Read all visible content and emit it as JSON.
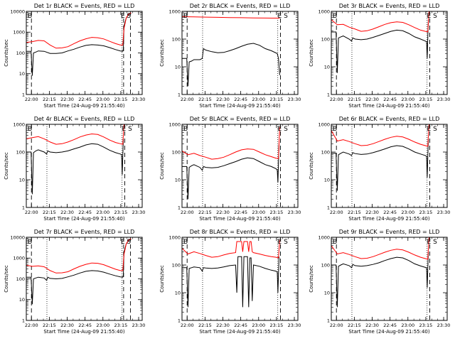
{
  "colors": {
    "events": "#000000",
    "lld": "#ff0000",
    "background": "#ffffff"
  },
  "xticks": [
    "22:00",
    "22:15",
    "22:30",
    "22:45",
    "23:00",
    "23:15",
    "23:30"
  ],
  "xlabel": "Start Time (24-Aug-09 21:55:40)",
  "ylabel": "Counts/sec",
  "marker_start": "B",
  "marker_end": "E S",
  "chart_data": [
    {
      "type": "line",
      "title": "Det 1r BLACK = Events, RED = LLD",
      "xlim_min": [
        0,
        97.3
      ],
      "ylim": [
        1,
        10000
      ],
      "yticks": [
        "1",
        "10",
        "100",
        "1000",
        "10000"
      ],
      "dashed_x": [
        4.3,
        81.7,
        87.5
      ],
      "dotted_x": [
        80.4
      ],
      "series": [
        {
          "name": "Events",
          "color": "#000000",
          "x": [
            0,
            4,
            5,
            6,
            8,
            10,
            15,
            20,
            25,
            30,
            35,
            40,
            45,
            50,
            55,
            60,
            65,
            70,
            75,
            79,
            81,
            81.5,
            82,
            84,
            86,
            88
          ],
          "y": [
            120,
            120,
            8,
            100,
            110,
            125,
            120,
            95,
            95,
            100,
            125,
            150,
            190,
            230,
            250,
            240,
            220,
            180,
            145,
            125,
            120,
            150,
            2000,
            5000,
            7000,
            8000
          ]
        },
        {
          "name": "LLD",
          "color": "#ff0000",
          "x": [
            0,
            5,
            10,
            15,
            20,
            25,
            30,
            35,
            40,
            45,
            50,
            55,
            60,
            65,
            70,
            75,
            79,
            81,
            82,
            84,
            86,
            88
          ],
          "y": [
            320,
            350,
            400,
            380,
            240,
            170,
            175,
            200,
            280,
            380,
            480,
            560,
            540,
            470,
            360,
            280,
            240,
            240,
            1500,
            5000,
            7500,
            8500
          ]
        }
      ]
    },
    {
      "type": "line",
      "title": "Det 2r BLACK = Events, RED = LLD",
      "xlim_min": [
        0,
        97.3
      ],
      "ylim": [
        1,
        1000
      ],
      "yticks": [
        "1",
        "10",
        "100",
        "1000"
      ],
      "dashed_x": [
        4.3,
        82.7
      ],
      "dotted_x": [
        17.3,
        80.4
      ],
      "series": [
        {
          "name": "Events",
          "color": "#000000",
          "x": [
            0,
            4,
            5,
            6,
            8,
            10,
            15,
            17,
            18,
            20,
            25,
            30,
            35,
            40,
            45,
            50,
            55,
            60,
            65,
            70,
            75,
            80,
            81,
            82
          ],
          "y": [
            20,
            20,
            2,
            15,
            16,
            18,
            18,
            20,
            45,
            40,
            35,
            32,
            33,
            38,
            45,
            55,
            65,
            70,
            60,
            45,
            38,
            30,
            20,
            5
          ]
        },
        {
          "name": "LLD",
          "color": "#ff0000",
          "x": [
            0,
            5,
            10,
            20,
            30,
            40,
            50,
            60,
            70,
            80,
            82
          ],
          "y": [
            650,
            640,
            630,
            620,
            610,
            600,
            590,
            580,
            575,
            570,
            560
          ]
        }
      ]
    },
    {
      "type": "line",
      "title": "Det 3r BLACK = Events, RED = LLD",
      "xlim_min": [
        0,
        97.3
      ],
      "ylim": [
        1,
        1000
      ],
      "yticks": [
        "1",
        "10",
        "100",
        "1000"
      ],
      "dashed_x": [
        4.3,
        82.7
      ],
      "dotted_x": [
        17.3,
        80.4
      ],
      "series": [
        {
          "name": "Events",
          "color": "#000000",
          "x": [
            0,
            4,
            5,
            6,
            8,
            10,
            15,
            17,
            18,
            20,
            25,
            30,
            35,
            40,
            45,
            50,
            55,
            60,
            65,
            70,
            75,
            79,
            80,
            80.5,
            81.5
          ],
          "y": [
            180,
            180,
            6,
            110,
            120,
            130,
            100,
            85,
            110,
            100,
            95,
            100,
            115,
            135,
            160,
            190,
            210,
            200,
            160,
            120,
            100,
            85,
            80,
            20,
            500
          ]
        },
        {
          "name": "LLD",
          "color": "#ff0000",
          "x": [
            0,
            5,
            10,
            15,
            20,
            25,
            30,
            35,
            40,
            45,
            50,
            55,
            60,
            65,
            70,
            75,
            79,
            81,
            82
          ],
          "y": [
            500,
            330,
            340,
            270,
            230,
            190,
            200,
            230,
            280,
            340,
            390,
            420,
            400,
            330,
            260,
            210,
            190,
            180,
            1000
          ]
        }
      ]
    },
    {
      "type": "line",
      "title": "Det 4r BLACK = Events, RED = LLD",
      "xlim_min": [
        0,
        97.3
      ],
      "ylim": [
        1,
        1000
      ],
      "yticks": [
        "1",
        "10",
        "100",
        "1000"
      ],
      "dashed_x": [
        4.3,
        82.7
      ],
      "dotted_x": [
        17.3,
        80.4
      ],
      "series": [
        {
          "name": "Events",
          "color": "#000000",
          "x": [
            0,
            4,
            5,
            6,
            8,
            10,
            15,
            17,
            18,
            20,
            25,
            30,
            35,
            40,
            45,
            50,
            55,
            60,
            65,
            70,
            75,
            79,
            80,
            80.5,
            81.5
          ],
          "y": [
            100,
            100,
            3,
            95,
            110,
            120,
            100,
            85,
            110,
            100,
            95,
            100,
            110,
            130,
            150,
            180,
            200,
            190,
            150,
            115,
            95,
            85,
            80,
            15,
            300
          ]
        },
        {
          "name": "LLD",
          "color": "#ff0000",
          "x": [
            0,
            5,
            10,
            15,
            20,
            25,
            30,
            35,
            40,
            45,
            50,
            55,
            60,
            65,
            70,
            75,
            79,
            81,
            82
          ],
          "y": [
            300,
            330,
            360,
            300,
            230,
            190,
            200,
            230,
            280,
            350,
            410,
            450,
            430,
            350,
            270,
            220,
            200,
            190,
            1000
          ]
        }
      ]
    },
    {
      "type": "line",
      "title": "Det 5r BLACK = Events, RED = LLD",
      "xlim_min": [
        0,
        97.3
      ],
      "ylim": [
        1,
        1000
      ],
      "yticks": [
        "1",
        "10",
        "100",
        "1000"
      ],
      "dashed_x": [
        4.3,
        82.7
      ],
      "dotted_x": [
        17.3,
        80.4
      ],
      "series": [
        {
          "name": "Events",
          "color": "#000000",
          "x": [
            0,
            4,
            5,
            6,
            8,
            10,
            15,
            17,
            18,
            20,
            25,
            30,
            35,
            40,
            45,
            50,
            55,
            60,
            65,
            70,
            75,
            79,
            80,
            80.5,
            81.5
          ],
          "y": [
            30,
            30,
            2,
            28,
            32,
            35,
            28,
            22,
            30,
            28,
            27,
            28,
            32,
            38,
            45,
            55,
            62,
            58,
            45,
            35,
            30,
            25,
            22,
            8,
            200
          ]
        },
        {
          "name": "LLD",
          "color": "#ff0000",
          "x": [
            0,
            5,
            10,
            15,
            20,
            25,
            30,
            35,
            40,
            45,
            50,
            55,
            60,
            65,
            70,
            75,
            79,
            81,
            82
          ],
          "y": [
            110,
            80,
            90,
            75,
            65,
            55,
            58,
            65,
            80,
            100,
            120,
            130,
            125,
            100,
            80,
            68,
            60,
            58,
            800
          ]
        }
      ]
    },
    {
      "type": "line",
      "title": "Det 6r BLACK = Events, RED = LLD",
      "xlim_min": [
        0,
        97.3
      ],
      "ylim": [
        1,
        1000
      ],
      "yticks": [
        "1",
        "10",
        "100",
        "1000"
      ],
      "dashed_x": [
        4.3,
        82.7
      ],
      "dotted_x": [
        17.3,
        80.4
      ],
      "series": [
        {
          "name": "Events",
          "color": "#000000",
          "x": [
            0,
            4,
            5,
            6,
            8,
            10,
            15,
            17,
            18,
            20,
            25,
            30,
            35,
            40,
            45,
            50,
            55,
            60,
            65,
            70,
            75,
            79,
            80,
            80.5,
            81.5
          ],
          "y": [
            90,
            90,
            4,
            80,
            90,
            100,
            85,
            75,
            95,
            88,
            82,
            85,
            95,
            110,
            130,
            155,
            170,
            160,
            130,
            100,
            85,
            75,
            70,
            12,
            300
          ]
        },
        {
          "name": "LLD",
          "color": "#ff0000",
          "x": [
            0,
            5,
            10,
            15,
            20,
            25,
            30,
            35,
            40,
            45,
            50,
            55,
            60,
            65,
            70,
            75,
            79,
            81,
            82
          ],
          "y": [
            600,
            250,
            280,
            240,
            200,
            170,
            175,
            200,
            240,
            290,
            340,
            370,
            350,
            290,
            230,
            190,
            170,
            160,
            1000
          ]
        }
      ]
    },
    {
      "type": "line",
      "title": "Det 7r BLACK = Events, RED = LLD",
      "xlim_min": [
        0,
        97.3
      ],
      "ylim": [
        1,
        10000
      ],
      "yticks": [
        "1",
        "10",
        "100",
        "1000",
        "10000"
      ],
      "dashed_x": [
        4.3,
        81.7,
        87.5
      ],
      "dotted_x": [
        17.3,
        80.4
      ],
      "series": [
        {
          "name": "Events",
          "color": "#000000",
          "x": [
            0,
            4,
            5,
            6,
            8,
            10,
            15,
            17,
            18,
            20,
            25,
            30,
            35,
            40,
            45,
            50,
            55,
            60,
            65,
            70,
            75,
            79,
            81,
            81.5,
            82,
            84,
            86,
            88
          ],
          "y": [
            120,
            120,
            6,
            100,
            110,
            120,
            110,
            85,
            120,
            105,
            100,
            105,
            125,
            150,
            190,
            230,
            250,
            240,
            210,
            170,
            140,
            125,
            120,
            150,
            2000,
            5000,
            7000,
            8000
          ]
        },
        {
          "name": "LLD",
          "color": "#ff0000",
          "x": [
            0,
            5,
            10,
            15,
            20,
            25,
            30,
            35,
            40,
            45,
            50,
            55,
            60,
            65,
            70,
            75,
            79,
            81,
            82,
            84,
            86,
            88
          ],
          "y": [
            450,
            400,
            420,
            380,
            250,
            190,
            195,
            220,
            300,
            400,
            500,
            580,
            560,
            480,
            370,
            290,
            250,
            250,
            1500,
            5000,
            7500,
            8500
          ]
        }
      ]
    },
    {
      "type": "line",
      "title": "Det 8r BLACK = Events, RED = LLD",
      "xlim_min": [
        0,
        97.3
      ],
      "ylim": [
        1,
        1000
      ],
      "yticks": [
        "1",
        "10",
        "100",
        "1000"
      ],
      "dashed_x": [
        4.3,
        82.7
      ],
      "dotted_x": [
        17.3,
        80.4
      ],
      "series": [
        {
          "name": "Events",
          "color": "#000000",
          "x": [
            0,
            4,
            5,
            6,
            8,
            10,
            15,
            17,
            18,
            20,
            25,
            30,
            35,
            40,
            45,
            46,
            47,
            50,
            51,
            52,
            53,
            55,
            56,
            57,
            58,
            59,
            60,
            65,
            70,
            75,
            79,
            80,
            80.5,
            81.5
          ],
          "y": [
            80,
            80,
            3,
            75,
            80,
            85,
            80,
            60,
            80,
            78,
            75,
            78,
            85,
            95,
            100,
            10,
            200,
            200,
            3,
            200,
            200,
            200,
            3,
            180,
            180,
            5,
            100,
            90,
            75,
            65,
            60,
            55,
            10,
            200
          ]
        },
        {
          "name": "LLD",
          "color": "#ff0000",
          "x": [
            0,
            5,
            10,
            15,
            20,
            25,
            30,
            35,
            40,
            45,
            46,
            47,
            50,
            51,
            52,
            55,
            56,
            57,
            58,
            59,
            60,
            65,
            70,
            75,
            79,
            81,
            82
          ],
          "y": [
            400,
            250,
            300,
            260,
            220,
            190,
            200,
            230,
            260,
            280,
            700,
            700,
            700,
            300,
            700,
            700,
            300,
            700,
            700,
            300,
            280,
            250,
            220,
            200,
            190,
            180,
            800
          ]
        }
      ]
    },
    {
      "type": "line",
      "title": "Det 9r BLACK = Events, RED = LLD",
      "xlim_min": [
        0,
        97.3
      ],
      "ylim": [
        1,
        1000
      ],
      "yticks": [
        "1",
        "10",
        "100",
        "1000"
      ],
      "dashed_x": [
        4.3,
        82.7
      ],
      "dotted_x": [
        17.3,
        80.4
      ],
      "series": [
        {
          "name": "Events",
          "color": "#000000",
          "x": [
            0,
            4,
            5,
            6,
            8,
            10,
            15,
            17,
            18,
            20,
            25,
            30,
            35,
            40,
            45,
            50,
            55,
            60,
            65,
            70,
            75,
            79,
            80,
            80.5,
            81.5
          ],
          "y": [
            100,
            100,
            3,
            90,
            100,
            110,
            95,
            80,
            105,
            95,
            90,
            95,
            105,
            120,
            145,
            170,
            190,
            180,
            145,
            110,
            92,
            82,
            78,
            15,
            300
          ]
        },
        {
          "name": "LLD",
          "color": "#ff0000",
          "x": [
            0,
            5,
            10,
            15,
            20,
            25,
            30,
            35,
            40,
            45,
            50,
            55,
            60,
            65,
            70,
            75,
            79,
            81,
            82
          ],
          "y": [
            500,
            250,
            280,
            240,
            200,
            170,
            175,
            200,
            240,
            290,
            340,
            370,
            350,
            290,
            230,
            190,
            170,
            160,
            1000
          ]
        }
      ]
    }
  ]
}
